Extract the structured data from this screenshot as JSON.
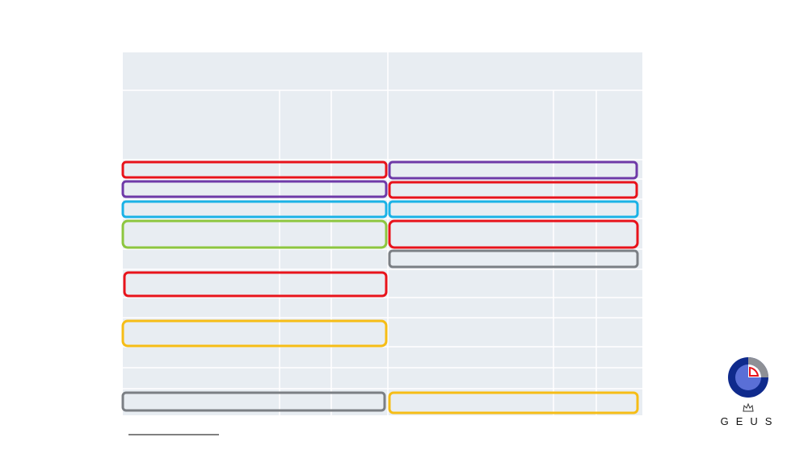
{
  "logo": {
    "text": "GEUS"
  }
}
